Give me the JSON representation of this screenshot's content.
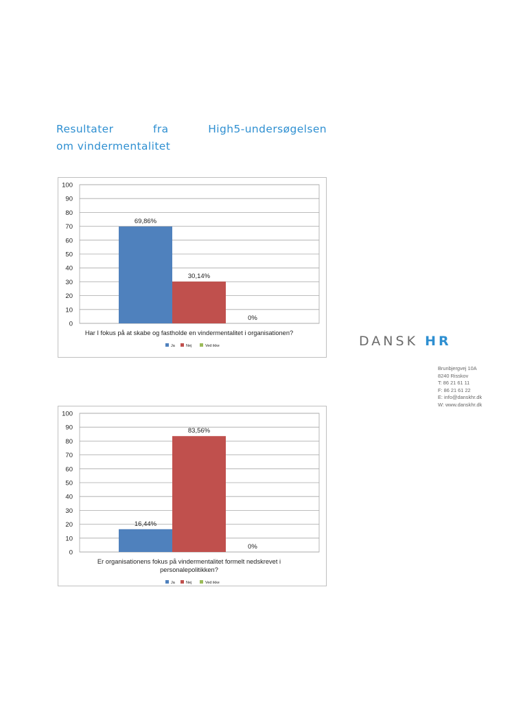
{
  "heading": {
    "line1_words": [
      "Resultater",
      "fra",
      "High5-undersøgelsen"
    ],
    "line2": "om vindermentalitet"
  },
  "logo": {
    "part1": "DANSK",
    "part2": "HR"
  },
  "address": [
    "Brunbjergvej 10A",
    "8240 Risskov",
    "T: 86 21 61 11",
    "F: 86 21 61 22",
    "E: info@danskhr.dk",
    "W: www.danskhr.dk"
  ],
  "colors": {
    "ja": "#4f81bd",
    "nej": "#c0504d",
    "ved_ikke": "#9bbb59",
    "heading": "#2e8fd1"
  },
  "chart_data": [
    {
      "type": "bar",
      "categories": [
        "Ja",
        "Nej",
        "Ved ikke"
      ],
      "values": [
        69.86,
        30.14,
        0
      ],
      "data_labels": [
        "69,86%",
        "30,14%",
        "0%"
      ],
      "xlabel_lines": [
        "Har I fokus på at skabe og fastholde en vindermentalitet i organisationen?"
      ],
      "ylim": [
        0,
        100
      ],
      "yticks": [
        0,
        10,
        20,
        30,
        40,
        50,
        60,
        70,
        80,
        90,
        100
      ],
      "grid": true,
      "legend": [
        "Ja",
        "Nej",
        "Ved ikke"
      ],
      "legend_position": "bottom"
    },
    {
      "type": "bar",
      "categories": [
        "Ja",
        "Nej",
        "Ved ikke"
      ],
      "values": [
        16.44,
        83.56,
        0
      ],
      "data_labels": [
        "16,44%",
        "83,56%",
        "0%"
      ],
      "xlabel_lines": [
        "Er organisationens fokus på vindermentalitet formelt nedskrevet i",
        "personalepolitikken?"
      ],
      "ylim": [
        0,
        100
      ],
      "yticks": [
        0,
        10,
        20,
        30,
        40,
        50,
        60,
        70,
        80,
        90,
        100
      ],
      "grid": true,
      "legend": [
        "Ja",
        "Nej",
        "Ved ikke"
      ],
      "legend_position": "bottom"
    }
  ]
}
